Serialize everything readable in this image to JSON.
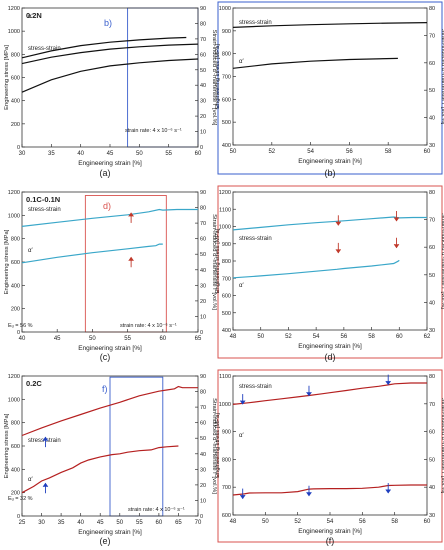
{
  "figure": {
    "labels": [
      "(a)",
      "(b)",
      "(c)",
      "(d)",
      "(e)",
      "(f)"
    ]
  },
  "chart_data": [
    {
      "id": "a",
      "type": "line",
      "title": "0.2N",
      "xlabel": "Engineering strain [%]",
      "ylabel": "Engineering stress [MPa]",
      "y2label": "Strain-induced α′-martensite f′ [vol.%]",
      "xlim": [
        30,
        60
      ],
      "ylim": [
        0,
        1200
      ],
      "y2lim": [
        0,
        90
      ],
      "xticks": [
        30,
        35,
        40,
        45,
        50,
        55,
        60
      ],
      "yticks": [
        0,
        200,
        400,
        600,
        800,
        1000,
        1200
      ],
      "y2ticks": [
        0,
        10,
        20,
        30,
        40,
        50,
        60,
        70,
        80,
        90
      ],
      "series": [
        {
          "name": "stress-strain",
          "axis": "left",
          "x": [
            30,
            35,
            40,
            45,
            50,
            55,
            58
          ],
          "y": [
            770,
            830,
            875,
            905,
            925,
            940,
            945
          ]
        },
        {
          "name": "",
          "axis": "left",
          "x": [
            30,
            35,
            40,
            45,
            50,
            55,
            60
          ],
          "y": [
            720,
            775,
            815,
            845,
            865,
            880,
            888
          ]
        },
        {
          "name": "α′",
          "axis": "right",
          "x": [
            30,
            35,
            40,
            45,
            50,
            55,
            60
          ],
          "y": [
            35.5,
            43.5,
            49,
            52.5,
            54.5,
            56,
            57
          ]
        }
      ],
      "annotations": [
        {
          "text": "strain rate: 4 x 10⁻⁶ s⁻¹"
        },
        {
          "text": "b)",
          "color": "#3a5fcd"
        }
      ],
      "zoom_box": {
        "x": [
          48,
          60
        ],
        "y": [
          0,
          1200
        ],
        "color": "#3a5fcd"
      }
    },
    {
      "id": "b",
      "type": "line",
      "title": "",
      "xlabel": "Engineering strain [%]",
      "ylabel": "Engineering stress [MPa]",
      "y2label": "Strain-induced α′-martensite f′ [vol.%]",
      "xlim": [
        50,
        60
      ],
      "ylim": [
        400,
        1000
      ],
      "y2lim": [
        30,
        80
      ],
      "xticks": [
        50,
        52,
        54,
        56,
        58,
        60
      ],
      "yticks": [
        400,
        500,
        600,
        700,
        800,
        900,
        1000
      ],
      "y2ticks": [
        30,
        40,
        50,
        60,
        70,
        80
      ],
      "frame_color": "#3a5fcd",
      "series": [
        {
          "name": "stress-strain",
          "axis": "left",
          "x": [
            50,
            52,
            54,
            56,
            58,
            60
          ],
          "y": [
            915,
            922,
            927,
            931,
            934,
            936
          ]
        },
        {
          "name": "α′",
          "axis": "right",
          "x": [
            50,
            52,
            54,
            56,
            58.5
          ],
          "y": [
            58,
            59.6,
            60.6,
            61.2,
            61.6
          ]
        }
      ],
      "annotations": []
    },
    {
      "id": "c",
      "type": "line",
      "title": "0.1C-0.1N",
      "xlabel": "Engineering strain [%]",
      "ylabel": "Engineering stress [MPa]",
      "y2label": "Strain-induced α′-martensite f′ [vol.%]",
      "xlim": [
        40,
        65
      ],
      "ylim": [
        0,
        1200
      ],
      "y2lim": [
        0,
        90
      ],
      "xticks": [
        40,
        45,
        50,
        55,
        60,
        65
      ],
      "yticks": [
        0,
        200,
        400,
        600,
        800,
        1000,
        1200
      ],
      "y2ticks": [
        0,
        10,
        20,
        30,
        40,
        50,
        60,
        70,
        80,
        90
      ],
      "series": [
        {
          "name": "stress-strain",
          "axis": "left",
          "x": [
            40,
            45,
            50,
            55,
            58,
            59.5,
            60,
            62,
            65
          ],
          "y": [
            905,
            940,
            975,
            1005,
            1030,
            1050,
            1045,
            1050,
            1050
          ]
        },
        {
          "name": "α′",
          "axis": "right",
          "x": [
            40,
            45,
            50,
            55,
            58,
            59,
            59.5,
            60
          ],
          "y": [
            44.5,
            48,
            51,
            53.5,
            55,
            55.5,
            56.5,
            56.5
          ]
        }
      ],
      "annotations": [
        {
          "text": "strain rate: 4 x 10⁻⁶ s⁻¹"
        },
        {
          "text": "Eᵤ = 56 %"
        },
        {
          "text": "d)",
          "color": "#d9534f"
        }
      ],
      "zoom_box": {
        "x": [
          49,
          60.5
        ],
        "y": [
          0,
          1170
        ],
        "color": "#d9534f"
      },
      "arrows": [
        {
          "x": 55.5,
          "y": 935
        },
        {
          "x": 55.5,
          "y": 555
        }
      ]
    },
    {
      "id": "d",
      "type": "line",
      "title": "",
      "xlabel": "Engineering strain [%]",
      "ylabel": "Engineering stress [MPa]",
      "y2label": "Strain-induced α′-martensite f′ [vol.%]",
      "xlim": [
        48,
        62
      ],
      "ylim": [
        400,
        1200
      ],
      "y2lim": [
        30,
        80
      ],
      "xticks": [
        48,
        50,
        52,
        54,
        56,
        58,
        60,
        62
      ],
      "yticks": [
        400,
        500,
        600,
        700,
        800,
        900,
        1000,
        1100,
        1200
      ],
      "y2ticks": [
        30,
        40,
        50,
        60,
        70,
        80
      ],
      "frame_color": "#d9534f",
      "series": [
        {
          "name": "stress-strain",
          "axis": "left",
          "x": [
            48,
            50,
            52,
            54,
            55.5,
            56,
            58,
            59.6,
            60,
            61,
            62
          ],
          "y": [
            980,
            995,
            1010,
            1022,
            1030,
            1033,
            1045,
            1055,
            1050,
            1052,
            1052
          ]
        },
        {
          "name": "α′",
          "axis": "right",
          "x": [
            48,
            50,
            52,
            54,
            55.5,
            56,
            58,
            59.6,
            59.9,
            60
          ],
          "y": [
            48.9,
            49.6,
            50.4,
            51.3,
            52,
            52.3,
            53.2,
            54.1,
            54.9,
            55.2
          ]
        }
      ],
      "annotations": [],
      "arrows": [
        {
          "x": 55.6,
          "y": 1065
        },
        {
          "x": 59.8,
          "y": 1090
        },
        {
          "x": 55.6,
          "y": 905
        },
        {
          "x": 59.8,
          "y": 935
        }
      ]
    },
    {
      "id": "e",
      "type": "line",
      "title": "0.2C",
      "xlabel": "Engineering strain [%]",
      "ylabel": "Engineering stress [MPa]",
      "y2label": "Strain-induced α′-martensite f′ [vol.%]",
      "xlim": [
        25,
        70
      ],
      "ylim": [
        0,
        1200
      ],
      "y2lim": [
        0,
        90
      ],
      "xticks": [
        25,
        30,
        35,
        40,
        45,
        50,
        55,
        60,
        65,
        70
      ],
      "yticks": [
        0,
        200,
        400,
        600,
        800,
        1000,
        1200
      ],
      "y2ticks": [
        0,
        10,
        20,
        30,
        40,
        50,
        60,
        70,
        80,
        90
      ],
      "series": [
        {
          "name": "stress-strain",
          "axis": "left",
          "x": [
            25,
            30,
            35,
            40,
            45,
            50,
            55,
            60,
            62,
            64,
            65,
            66,
            70
          ],
          "y": [
            690,
            755,
            815,
            870,
            925,
            975,
            1030,
            1070,
            1080,
            1090,
            1110,
            1100,
            1100
          ]
        },
        {
          "name": "α′",
          "axis": "right",
          "x": [
            25,
            28,
            30,
            32,
            35,
            38,
            40,
            42,
            45,
            48,
            50,
            52,
            55,
            58,
            60,
            62,
            65
          ],
          "y": [
            15,
            19,
            22.5,
            24.5,
            28,
            31,
            34,
            36,
            38,
            39.5,
            40,
            41,
            42,
            42.5,
            44,
            44.5,
            45
          ]
        }
      ],
      "annotations": [
        {
          "text": "strain rate: 4 x 10⁻⁶ s⁻¹"
        },
        {
          "text": "Eᵤ = 32 %"
        },
        {
          "text": "f)",
          "color": "#3a5fcd"
        }
      ],
      "zoom_box": {
        "x": [
          47.5,
          61
        ],
        "y": [
          0,
          1190
        ],
        "color": "#3a5fcd"
      },
      "arrows": [
        {
          "x": 31,
          "y": 590
        },
        {
          "x": 31,
          "y": 195
        }
      ]
    },
    {
      "id": "f",
      "type": "line",
      "title": "",
      "xlabel": "Engineering strain [%]",
      "ylabel": "Engineering stress [MPa]",
      "y2label": "Strain-induced α′-martensite f′ [vol.%]",
      "xlim": [
        48,
        60
      ],
      "ylim": [
        600,
        1100
      ],
      "y2lim": [
        30,
        80
      ],
      "xticks": [
        48,
        50,
        52,
        54,
        56,
        58,
        60
      ],
      "yticks": [
        600,
        700,
        800,
        900,
        1000,
        1100
      ],
      "y2ticks": [
        30,
        40,
        50,
        60,
        70,
        80
      ],
      "frame_color": "#d9534f",
      "series": [
        {
          "name": "stress-strain",
          "axis": "left",
          "x": [
            48,
            49,
            50,
            51,
            52,
            52.7,
            53.5,
            54,
            55,
            56,
            57,
            57.6,
            58,
            59,
            60
          ],
          "y": [
            998,
            1004,
            1011,
            1018,
            1025,
            1030,
            1036,
            1040,
            1048,
            1056,
            1063,
            1068,
            1072,
            1075,
            1075
          ]
        },
        {
          "name": "α′",
          "axis": "right",
          "x": [
            48,
            48.7,
            49,
            50,
            51,
            52,
            52.7,
            53,
            54,
            55,
            56,
            57,
            57.6,
            58,
            59,
            60
          ],
          "y": [
            37.2,
            37.6,
            37.9,
            38,
            38,
            38.4,
            39.3,
            39.4,
            39.5,
            39.5,
            39.6,
            40,
            40.6,
            40.7,
            40.8,
            40.8
          ]
        }
      ],
      "annotations": [],
      "arrows": [
        {
          "x": 48.6,
          "y": 1035
        },
        {
          "x": 52.7,
          "y": 1065
        },
        {
          "x": 57.6,
          "y": 1105
        },
        {
          "x": 48.6,
          "y": 695
        },
        {
          "x": 52.7,
          "y": 705
        },
        {
          "x": 57.6,
          "y": 715
        }
      ]
    }
  ]
}
